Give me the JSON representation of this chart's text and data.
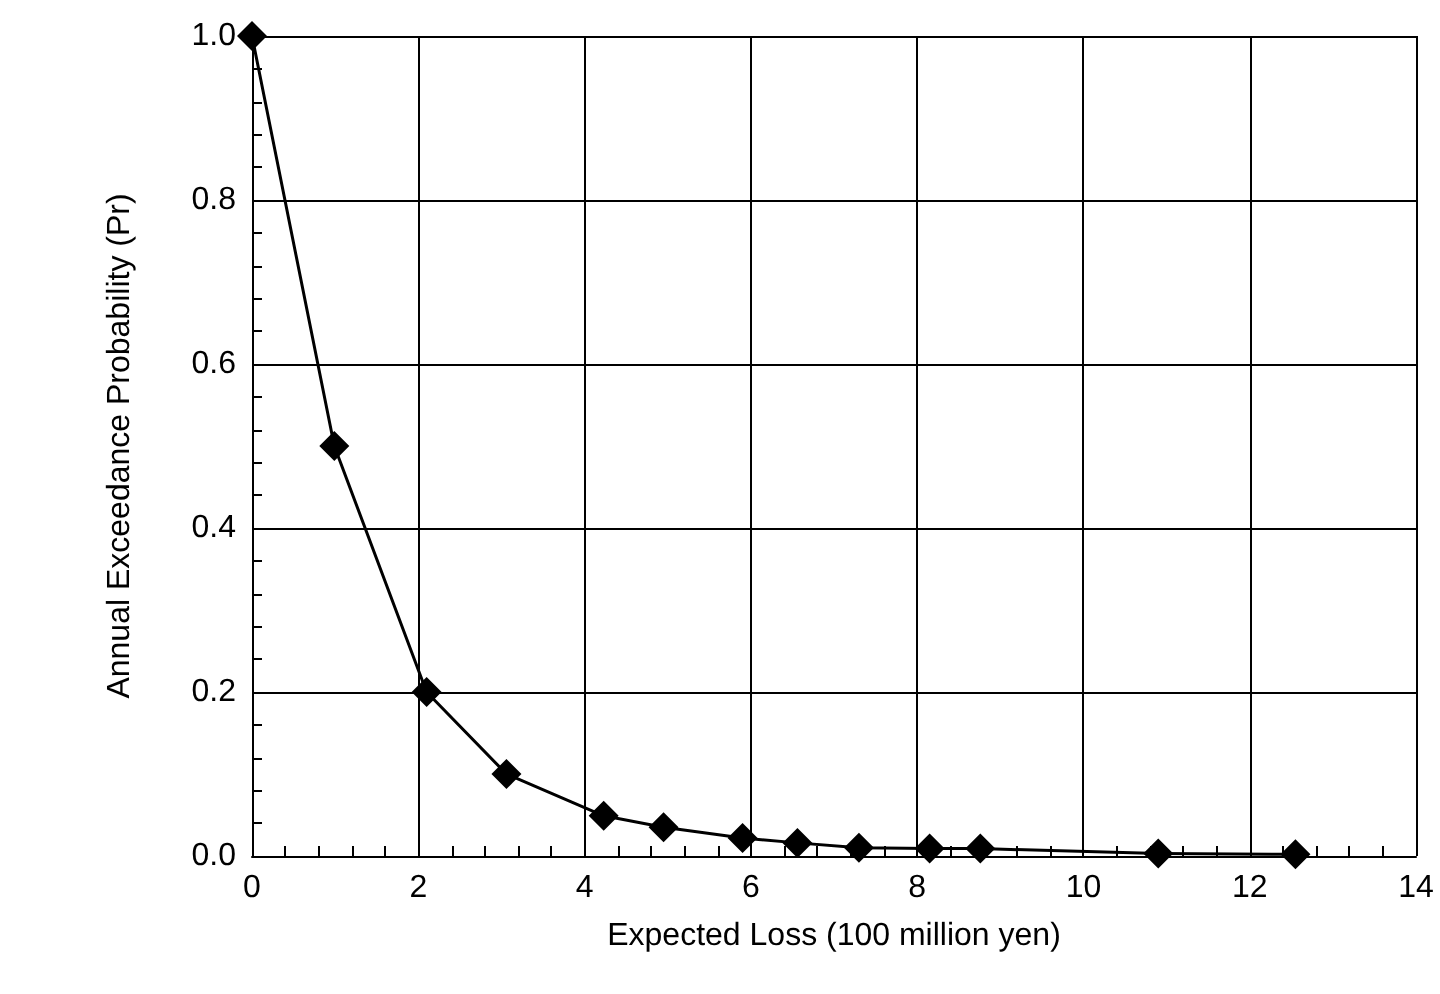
{
  "chart_data": {
    "type": "line",
    "xlabel": "Expected Loss (100 million yen)",
    "ylabel": "Annual Exceedance Probability (Pr)",
    "x": [
      0,
      0.99,
      2.1,
      3.06,
      4.23,
      4.95,
      5.9,
      6.56,
      7.3,
      8.15,
      8.76,
      10.9,
      12.55
    ],
    "series": [
      {
        "color": "#000000",
        "values": [
          1.0,
          0.5,
          0.2,
          0.1,
          0.049,
          0.035,
          0.022,
          0.016,
          0.01,
          0.009,
          0.009,
          0.003,
          0.002
        ]
      }
    ],
    "xlim": [
      0,
      14
    ],
    "xticks": [
      0,
      2,
      4,
      6,
      8,
      10,
      12,
      14
    ],
    "ylim": [
      0,
      1
    ],
    "yticks": [
      {
        "value": 0,
        "label": "0.0"
      },
      {
        "value": 0.2,
        "label": "0.2"
      },
      {
        "value": 0.4,
        "label": "0.4"
      },
      {
        "value": 0.6,
        "label": "0.6"
      },
      {
        "value": 0.8,
        "label": "0.8"
      },
      {
        "value": 1,
        "label": "1.0"
      }
    ],
    "grid": true,
    "marker": "diamond",
    "line_style": "solid"
  }
}
